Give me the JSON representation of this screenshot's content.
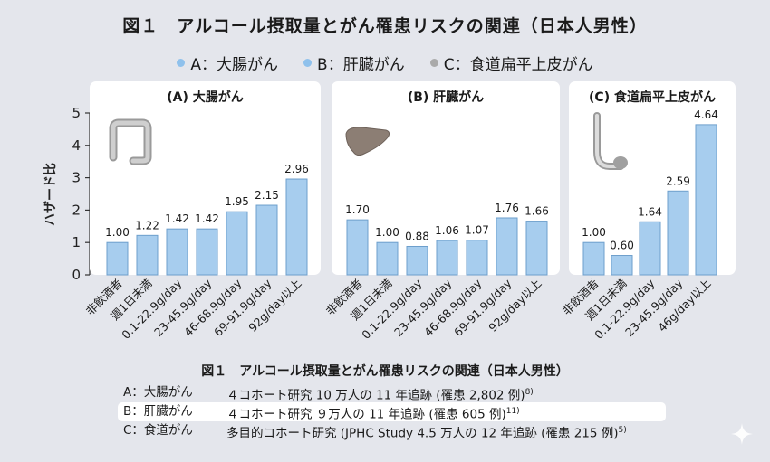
{
  "title": "図１　アルコール摂取量とがん罹患リスクの関連（日本人男性）",
  "legend": [
    {
      "label": "A：大腸がん",
      "color": "#8fc1ec"
    },
    {
      "label": "B：肝臓がん",
      "color": "#8fc1ec"
    },
    {
      "label": "C：食道扁平上皮がん",
      "color": "#aaaaaa"
    }
  ],
  "colors": {
    "bar": "#a7cdee",
    "bar_stroke": "#6d9fcc",
    "panel_bg": "#ffffff",
    "page_bg": "#e4e6ec"
  },
  "chart_data": [
    {
      "type": "bar",
      "title": "(A) 大腸がん",
      "icon": "colon-icon",
      "ylabel": "ハザード比",
      "ylim": [
        0,
        5
      ],
      "yticks": [
        "0",
        "1",
        "2",
        "3",
        "4",
        "5"
      ],
      "categories": [
        "非飲酒者",
        "週1日未満",
        "0.1-22.9g/day",
        "23-45.9g/day",
        "46-68.9g/day",
        "69-91.9g/day",
        "92g/day以上"
      ],
      "values": [
        1.0,
        1.22,
        1.42,
        1.42,
        1.95,
        2.15,
        2.96
      ],
      "value_labels": [
        "1.00",
        "1.22",
        "1.42",
        "1.42",
        "1.95",
        "2.15",
        "2.96"
      ]
    },
    {
      "type": "bar",
      "title": "(B) 肝臓がん",
      "icon": "liver-icon",
      "ylim": [
        0,
        5
      ],
      "categories": [
        "非飲酒者",
        "週1日未満",
        "0.1-22.9g/day",
        "23-45.9g/day",
        "46-68.9g/day",
        "69-91.9g/day",
        "92g/day以上"
      ],
      "values": [
        1.7,
        1.0,
        0.88,
        1.06,
        1.07,
        1.76,
        1.66
      ],
      "value_labels": [
        "1.70",
        "1.00",
        "0.88",
        "1.06",
        "1.07",
        "1.76",
        "1.66"
      ]
    },
    {
      "type": "bar",
      "title": "(C) 食道扁平上皮がん",
      "icon": "esophagus-icon",
      "ylim": [
        0,
        5
      ],
      "categories": [
        "非飲酒者",
        "週1日未満",
        "0.1-22.9g/day",
        "23-45.9g/day",
        "46g/day以上"
      ],
      "values": [
        1.0,
        0.6,
        1.64,
        2.59,
        4.64
      ],
      "value_labels": [
        "1.00",
        "0.60",
        "1.64",
        "2.59",
        "4.64"
      ]
    }
  ],
  "caption": {
    "title": "図１　アルコール摂取量とがん罹患リスクの関連（日本人男性）",
    "rows": [
      {
        "label": "A：大腸がん",
        "text": "４コホート研究 10 万人の 11 年追跡 (罹患 2,802 例)",
        "ref": "8)"
      },
      {
        "label": "B：肝臓がん",
        "text": "４コホート研究 ９万人の 11 年追跡 (罹患 605 例)",
        "ref": "11)"
      },
      {
        "label": "C：食道がん",
        "text": "多目的コホート研究 (JPHC Study 4.5 万人の 12 年追跡 (罹患 215 例)",
        "ref": "5)"
      }
    ]
  }
}
